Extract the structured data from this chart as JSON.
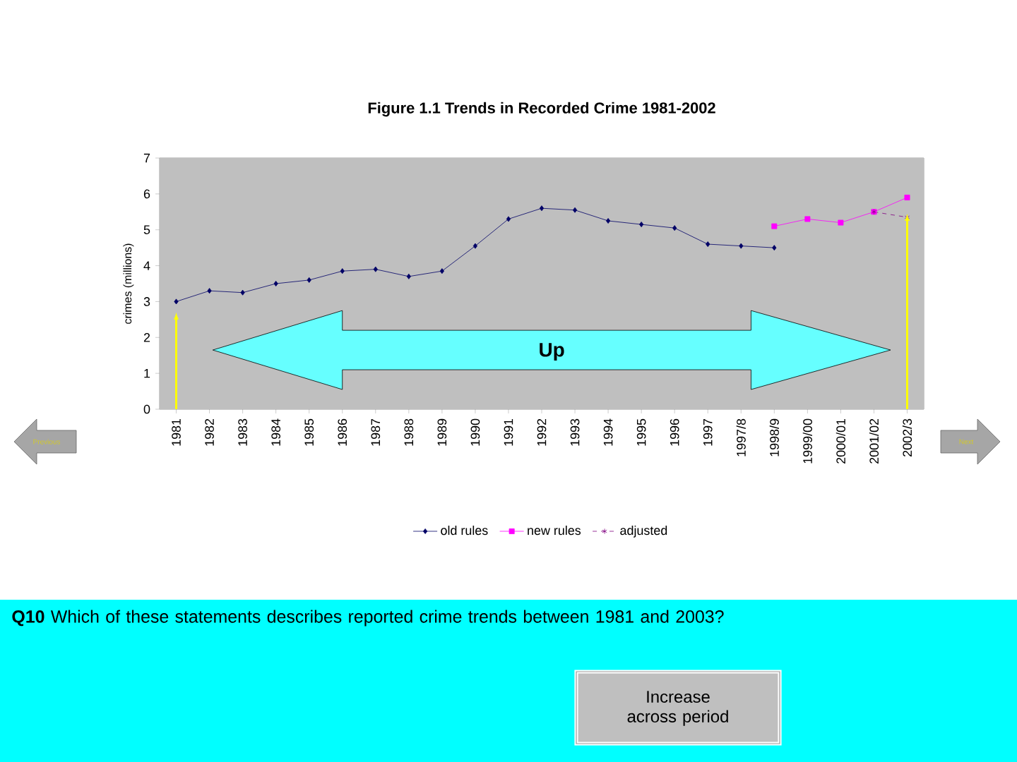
{
  "chart_data": {
    "type": "line",
    "title": "Figure 1.1 Trends in Recorded Crime 1981-2002",
    "ylabel": "crimes (millions)",
    "categories": [
      "1981",
      "1982",
      "1983",
      "1984",
      "1985",
      "1986",
      "1987",
      "1988",
      "1989",
      "1990",
      "1991",
      "1992",
      "1993",
      "1994",
      "1995",
      "1996",
      "1997",
      "1997/8",
      "1998/9",
      "1999/00",
      "2000/01",
      "2001/02",
      "2002/3"
    ],
    "series": [
      {
        "name": "old rules",
        "color": "#000066",
        "marker": "diamond",
        "line_style": "solid",
        "values": [
          3.0,
          3.3,
          3.25,
          3.5,
          3.6,
          3.85,
          3.9,
          3.7,
          3.85,
          4.55,
          5.3,
          5.6,
          5.55,
          5.25,
          5.15,
          5.05,
          4.6,
          4.55,
          4.5,
          null,
          null,
          null,
          null
        ]
      },
      {
        "name": "new rules",
        "color": "#ff00ff",
        "marker": "square",
        "line_style": "solid",
        "values": [
          null,
          null,
          null,
          null,
          null,
          null,
          null,
          null,
          null,
          null,
          null,
          null,
          null,
          null,
          null,
          null,
          null,
          null,
          5.1,
          5.3,
          5.2,
          5.5,
          5.9
        ]
      },
      {
        "name": "adjusted",
        "color": "#800080",
        "marker": "cross",
        "line_style": "dashed",
        "values": [
          null,
          null,
          null,
          null,
          null,
          null,
          null,
          null,
          null,
          null,
          null,
          null,
          null,
          null,
          null,
          null,
          null,
          null,
          null,
          null,
          null,
          5.5,
          5.35
        ]
      }
    ],
    "ylim": [
      0,
      7
    ],
    "yticks": [
      0,
      1,
      2,
      3,
      4,
      5,
      6,
      7
    ],
    "grid": false,
    "legend": "bottom",
    "annotations": [
      "Up",
      "**Q10** Which of these statements describes reported crime trends between 1981 and 2003?",
      "Increase across period",
      "Previous",
      "Next"
    ]
  }
}
